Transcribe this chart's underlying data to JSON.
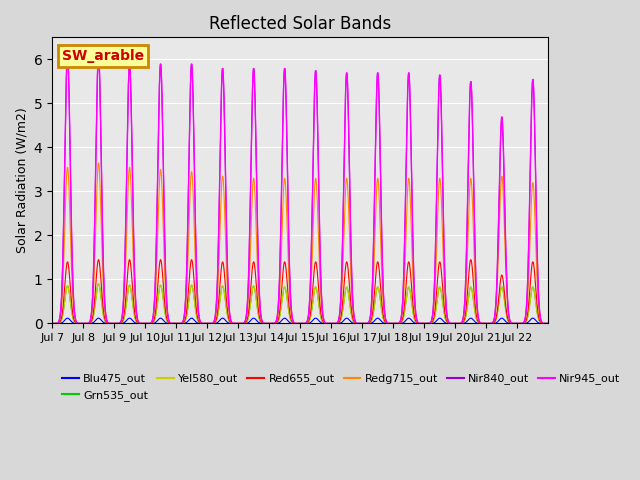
{
  "title": "Reflected Solar Bands",
  "ylabel": "Solar Radiation (W/m2)",
  "fig_bg_color": "#d8d8d8",
  "plot_bg_color": "#e8e8e8",
  "annotation_text": "SW_arable",
  "annotation_bg": "#ffff99",
  "annotation_border": "#cc8800",
  "annotation_text_color": "#cc0000",
  "ylim": [
    0,
    6.5
  ],
  "day_peaks_nir840": [
    6.1,
    6.1,
    5.9,
    5.9,
    5.9,
    5.8,
    5.8,
    5.8,
    5.75,
    5.7,
    5.7,
    5.7,
    5.65,
    5.5,
    4.65,
    5.55
  ],
  "day_peaks_nir945": [
    6.1,
    6.1,
    5.9,
    5.9,
    5.9,
    5.8,
    5.8,
    5.8,
    5.75,
    5.7,
    5.7,
    5.7,
    5.65,
    5.5,
    4.7,
    5.55
  ],
  "day_peaks_redg715": [
    3.55,
    3.65,
    3.55,
    3.5,
    3.45,
    3.35,
    3.3,
    3.3,
    3.3,
    3.3,
    3.3,
    3.3,
    3.3,
    3.3,
    3.35,
    3.2
  ],
  "day_peaks_red655": [
    1.4,
    1.45,
    1.45,
    1.45,
    1.45,
    1.4,
    1.4,
    1.4,
    1.4,
    1.4,
    1.4,
    1.4,
    1.4,
    1.45,
    1.1,
    1.4
  ],
  "day_peaks_grn535": [
    0.85,
    0.9,
    0.87,
    0.87,
    0.87,
    0.85,
    0.85,
    0.83,
    0.83,
    0.83,
    0.83,
    0.83,
    0.83,
    0.83,
    0.83,
    0.83
  ],
  "day_peaks_yel580": [
    0.85,
    0.9,
    0.87,
    0.87,
    0.87,
    0.85,
    0.85,
    0.83,
    0.83,
    0.83,
    0.83,
    0.83,
    0.83,
    0.83,
    0.83,
    0.83
  ],
  "day_peaks_blu475": [
    0.12,
    0.12,
    0.12,
    0.12,
    0.12,
    0.12,
    0.12,
    0.12,
    0.12,
    0.12,
    0.12,
    0.12,
    0.12,
    0.12,
    0.12,
    0.12
  ],
  "n_days": 16,
  "points_per_day": 96,
  "gaussian_sigma": 0.09,
  "xtick_labels": [
    "Jul 7",
    "Jul 8",
    "Jul 9",
    "Jul 10",
    "Jul 11",
    "Jul 12",
    "Jul 13",
    "Jul 14",
    "Jul 15",
    "Jul 16",
    "Jul 17",
    "Jul 18",
    "Jul 19",
    "Jul 20",
    "Jul 21",
    "Jul 22"
  ],
  "legend_entries": [
    {
      "label": "Blu475_out",
      "color": "#0000ff"
    },
    {
      "label": "Grn535_out",
      "color": "#00cc00"
    },
    {
      "label": "Yel580_out",
      "color": "#cccc00"
    },
    {
      "label": "Red655_out",
      "color": "#ff0000"
    },
    {
      "label": "Redg715_out",
      "color": "#ff8800"
    },
    {
      "label": "Nir840_out",
      "color": "#9900cc"
    },
    {
      "label": "Nir945_out",
      "color": "#ff00ff"
    }
  ]
}
